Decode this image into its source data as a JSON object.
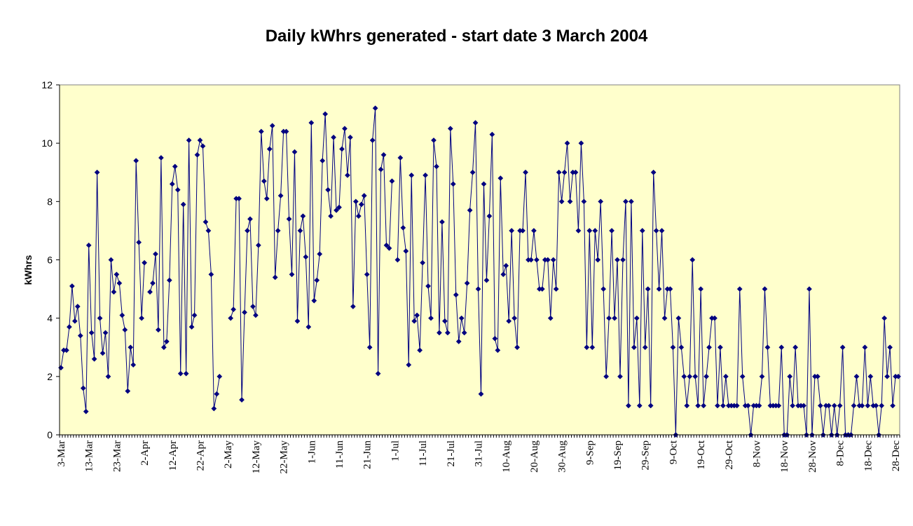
{
  "chart_data": {
    "type": "line",
    "title": "Daily kWhrs generated - start date 3 March 2004",
    "xlabel": "",
    "ylabel": "kWhrs",
    "ylim": [
      0,
      12
    ],
    "yticks": [
      0,
      2,
      4,
      6,
      8,
      10,
      12
    ],
    "grid": false,
    "legend": "none",
    "colors": {
      "line": "#000080",
      "marker": "#000080",
      "plot_bg": "#ffffcc",
      "axis": "#000000"
    },
    "x_tick_labels": [
      "3-Mar",
      "13-Mar",
      "23-Mar",
      "2-Apr",
      "12-Apr",
      "22-Apr",
      "2-May",
      "12-May",
      "22-May",
      "1-Jun",
      "11-Jun",
      "21-Jun",
      "1-Jul",
      "11-Jul",
      "21-Jul",
      "31-Jul",
      "10-Aug",
      "20-Aug",
      "30-Aug",
      "9-Sep",
      "19-Sep",
      "29-Sep",
      "9-Oct",
      "19-Oct",
      "29-Oct",
      "8-Nov",
      "18-Nov",
      "28-Nov",
      "8-Dec",
      "18-Dec",
      "28-Dec"
    ],
    "values": [
      2.3,
      2.9,
      2.9,
      3.7,
      5.1,
      3.9,
      4.4,
      3.4,
      1.6,
      0.8,
      6.5,
      3.5,
      2.6,
      9.0,
      4.0,
      2.8,
      3.5,
      2.0,
      6.0,
      4.9,
      5.5,
      5.2,
      4.1,
      3.6,
      1.5,
      3.0,
      2.4,
      9.4,
      6.6,
      4.0,
      5.9,
      null,
      4.9,
      5.2,
      6.2,
      3.6,
      9.5,
      3.0,
      3.2,
      5.3,
      8.6,
      9.2,
      8.4,
      2.1,
      7.9,
      2.1,
      10.1,
      3.7,
      4.1,
      9.6,
      10.1,
      9.9,
      7.3,
      7.0,
      5.5,
      0.9,
      1.4,
      2.0,
      null,
      null,
      null,
      4.0,
      4.3,
      8.1,
      8.1,
      1.2,
      4.2,
      7.0,
      7.4,
      4.4,
      4.1,
      6.5,
      10.4,
      8.7,
      8.1,
      9.8,
      10.6,
      5.4,
      7.0,
      8.2,
      10.4,
      10.4,
      7.4,
      5.5,
      9.7,
      3.9,
      7.0,
      7.5,
      6.1,
      3.7,
      10.7,
      4.6,
      5.3,
      6.2,
      9.4,
      11.0,
      8.4,
      7.5,
      10.2,
      7.7,
      7.8,
      9.8,
      10.5,
      8.9,
      10.2,
      4.4,
      8.0,
      7.5,
      7.9,
      8.2,
      5.5,
      3.0,
      10.1,
      11.2,
      2.1,
      9.1,
      9.6,
      6.5,
      6.4,
      8.7,
      null,
      6.0,
      9.5,
      7.1,
      6.3,
      2.4,
      8.9,
      3.9,
      4.1,
      2.9,
      5.9,
      8.9,
      5.1,
      4.0,
      10.1,
      9.2,
      3.5,
      7.3,
      3.9,
      3.5,
      10.5,
      8.6,
      4.8,
      3.2,
      4.0,
      3.5,
      5.2,
      7.7,
      9.0,
      10.7,
      5.0,
      1.4,
      8.6,
      5.3,
      7.5,
      10.3,
      3.3,
      2.9,
      8.8,
      5.5,
      5.8,
      3.9,
      7.0,
      4.0,
      3.0,
      7.0,
      7.0,
      9.0,
      6.0,
      6.0,
      7.0,
      6.0,
      5.0,
      5.0,
      6.0,
      6.0,
      4.0,
      6.0,
      5.0,
      9.0,
      8.0,
      9.0,
      10.0,
      8.0,
      9.0,
      9.0,
      7.0,
      10.0,
      8.0,
      3.0,
      7.0,
      3.0,
      7.0,
      6.0,
      8.0,
      5.0,
      2.0,
      4.0,
      7.0,
      4.0,
      6.0,
      2.0,
      6.0,
      8.0,
      1.0,
      8.0,
      3.0,
      4.0,
      1.0,
      7.0,
      3.0,
      5.0,
      1.0,
      9.0,
      7.0,
      5.0,
      7.0,
      4.0,
      5.0,
      5.0,
      3.0,
      0.0,
      4.0,
      3.0,
      2.0,
      1.0,
      2.0,
      6.0,
      2.0,
      1.0,
      5.0,
      1.0,
      2.0,
      3.0,
      4.0,
      4.0,
      1.0,
      3.0,
      1.0,
      2.0,
      1.0,
      1.0,
      1.0,
      1.0,
      5.0,
      2.0,
      1.0,
      1.0,
      0.0,
      1.0,
      1.0,
      1.0,
      2.0,
      5.0,
      3.0,
      1.0,
      1.0,
      1.0,
      1.0,
      3.0,
      0.0,
      0.0,
      2.0,
      1.0,
      3.0,
      1.0,
      1.0,
      1.0,
      0.0,
      5.0,
      0.0,
      2.0,
      2.0,
      1.0,
      0.0,
      1.0,
      1.0,
      0.0,
      1.0,
      0.0,
      1.0,
      3.0,
      0.0,
      0.0,
      0.0,
      1.0,
      2.0,
      1.0,
      1.0,
      3.0,
      1.0,
      2.0,
      1.0,
      1.0,
      0.0,
      1.0,
      4.0,
      2.0,
      3.0,
      1.0,
      2.0,
      2.0
    ]
  }
}
